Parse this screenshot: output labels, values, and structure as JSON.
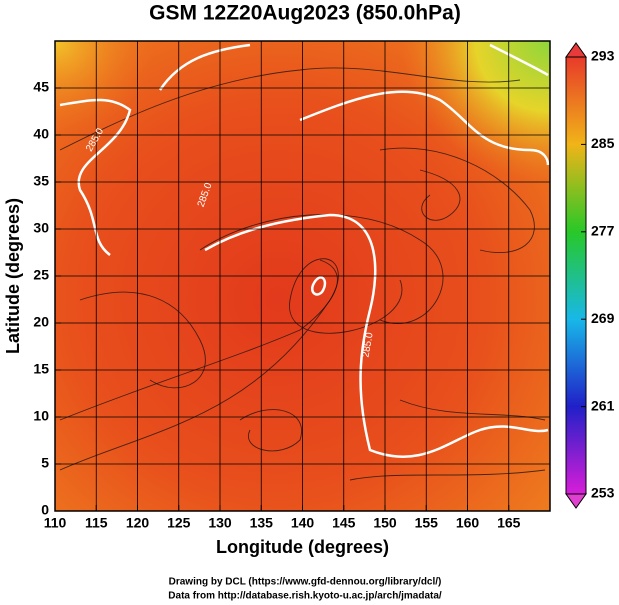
{
  "chart_data": {
    "type": "map",
    "title": "GSM 12Z20Aug2023 (850.0hPa)",
    "x_label": "Longitude (degrees)",
    "y_label": "Latitude (degrees)",
    "xlim": [
      110,
      170
    ],
    "xticks": [
      110,
      115,
      120,
      125,
      130,
      135,
      140,
      145,
      150,
      155,
      160,
      165
    ],
    "ylim": [
      0,
      50
    ],
    "yticks": [
      0,
      5,
      10,
      15,
      20,
      25,
      30,
      35,
      40,
      45
    ],
    "grid": true,
    "colorbar": {
      "lim": [
        253,
        293
      ],
      "ticks": [
        253,
        261,
        269,
        277,
        285,
        293
      ]
    },
    "contour_labels": [
      "285.0",
      "285.0",
      "285.0"
    ],
    "credits": [
      "Drawing by DCL (https://www.gfd-dennou.org/library/dcl/)",
      "Data from http://database.rish.kyoto-u.ac.jp/arch/jmadata/"
    ]
  }
}
